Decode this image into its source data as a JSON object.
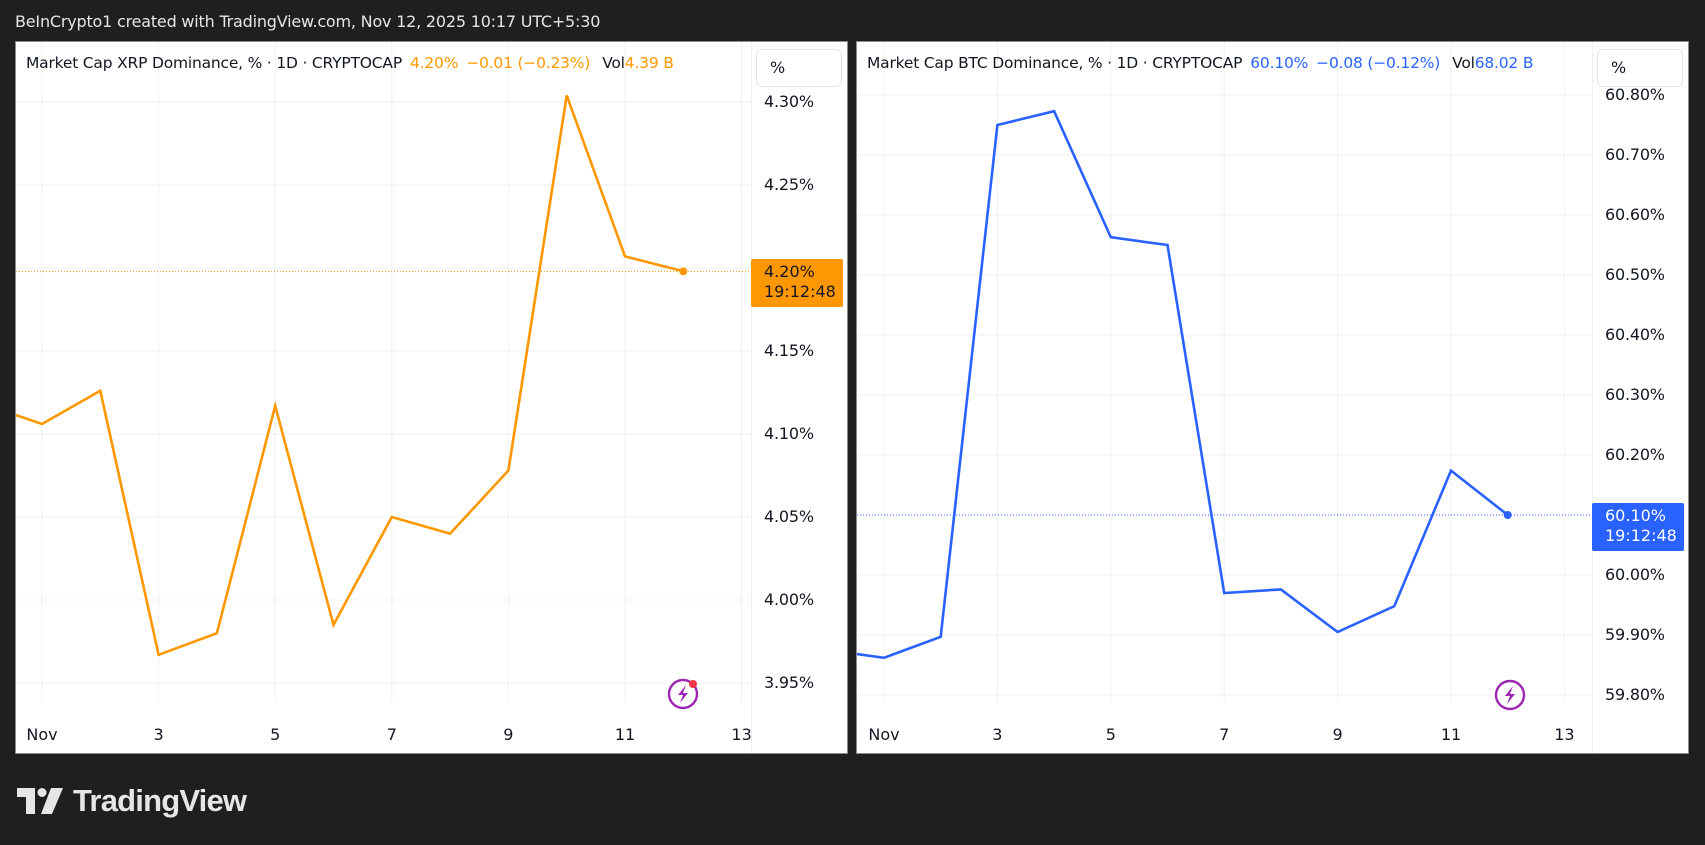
{
  "header": {
    "attribution": "BeInCrypto1 created with TradingView.com, Nov 12, 2025 10:17 UTC+5:30"
  },
  "footer": {
    "brand": "TradingView"
  },
  "panels": [
    {
      "id": "xrp",
      "legend": {
        "title": "Market Cap XRP Dominance, % · 1D · CRYPTOCAP",
        "last": "4.20%",
        "change": "−0.01 (−0.23%)",
        "vol_label": "Vol",
        "vol_value": "4.39 B"
      },
      "scale_button": "%",
      "price_tag": {
        "price": "4.20%",
        "countdown": "19:12:48"
      },
      "y_ticks": [
        "4.30%",
        "4.25%",
        "4.20%",
        "4.15%",
        "4.10%",
        "4.05%",
        "4.00%",
        "3.95%"
      ],
      "x_ticks": [
        "Nov",
        "3",
        "5",
        "7",
        "9",
        "11",
        "13"
      ],
      "color": "#ff9800"
    },
    {
      "id": "btc",
      "legend": {
        "title": "Market Cap BTC Dominance, % · 1D · CRYPTOCAP",
        "last": "60.10%",
        "change": "−0.08 (−0.12%)",
        "vol_label": "Vol",
        "vol_value": "68.02 B"
      },
      "scale_button": "%",
      "price_tag": {
        "price": "60.10%",
        "countdown": "19:12:48"
      },
      "y_ticks": [
        "60.80%",
        "60.70%",
        "60.60%",
        "60.50%",
        "60.40%",
        "60.30%",
        "60.20%",
        "60.10%",
        "60.00%",
        "59.90%",
        "59.80%"
      ],
      "x_ticks": [
        "Nov",
        "3",
        "5",
        "7",
        "9",
        "11",
        "13"
      ],
      "color": "#2962ff"
    }
  ],
  "chart_data": [
    {
      "type": "line",
      "title": "Market Cap XRP Dominance, % · 1D · CRYPTOCAP",
      "xlabel": "",
      "ylabel": "%",
      "x": [
        "Oct 31",
        "Nov 1",
        "Nov 2",
        "Nov 3",
        "Nov 4",
        "Nov 5",
        "Nov 6",
        "Nov 7",
        "Nov 8",
        "Nov 9",
        "Nov 10",
        "Nov 11",
        "Nov 12"
      ],
      "series": [
        {
          "name": "XRP Dominance",
          "color": "#ff9800",
          "values": [
            4.118,
            4.106,
            4.126,
            3.967,
            3.98,
            4.117,
            3.985,
            4.05,
            4.04,
            4.078,
            4.304,
            4.207,
            4.198
          ]
        }
      ],
      "x_tick_labels": [
        "Nov",
        "3",
        "5",
        "7",
        "9",
        "11",
        "13"
      ],
      "y_tick_labels": [
        "4.30%",
        "4.25%",
        "4.20%",
        "4.15%",
        "4.10%",
        "4.05%",
        "4.00%",
        "3.95%"
      ],
      "ylim": [
        3.93,
        4.32
      ],
      "last_value": "4.20%",
      "change": "−0.01 (−0.23%)",
      "volume": "4.39 B",
      "grid": true,
      "legend_position": "top-left"
    },
    {
      "type": "line",
      "title": "Market Cap BTC Dominance, % · 1D · CRYPTOCAP",
      "xlabel": "",
      "ylabel": "%",
      "x": [
        "Oct 31",
        "Nov 1",
        "Nov 2",
        "Nov 3",
        "Nov 4",
        "Nov 5",
        "Nov 6",
        "Nov 7",
        "Nov 8",
        "Nov 9",
        "Nov 10",
        "Nov 11",
        "Nov 12"
      ],
      "series": [
        {
          "name": "BTC Dominance",
          "color": "#2962ff",
          "values": [
            59.875,
            59.862,
            59.897,
            60.75,
            60.773,
            60.563,
            60.55,
            59.97,
            59.976,
            59.905,
            59.948,
            60.174,
            60.1
          ]
        }
      ],
      "x_tick_labels": [
        "Nov",
        "3",
        "5",
        "7",
        "9",
        "11",
        "13"
      ],
      "y_tick_labels": [
        "60.80%",
        "60.70%",
        "60.60%",
        "60.50%",
        "60.40%",
        "60.30%",
        "60.20%",
        "60.10%",
        "60.00%",
        "59.90%",
        "59.80%"
      ],
      "ylim": [
        59.77,
        60.81
      ],
      "last_value": "60.10%",
      "change": "−0.08 (−0.12%)",
      "volume": "68.02 B",
      "grid": true,
      "legend_position": "top-left"
    }
  ]
}
